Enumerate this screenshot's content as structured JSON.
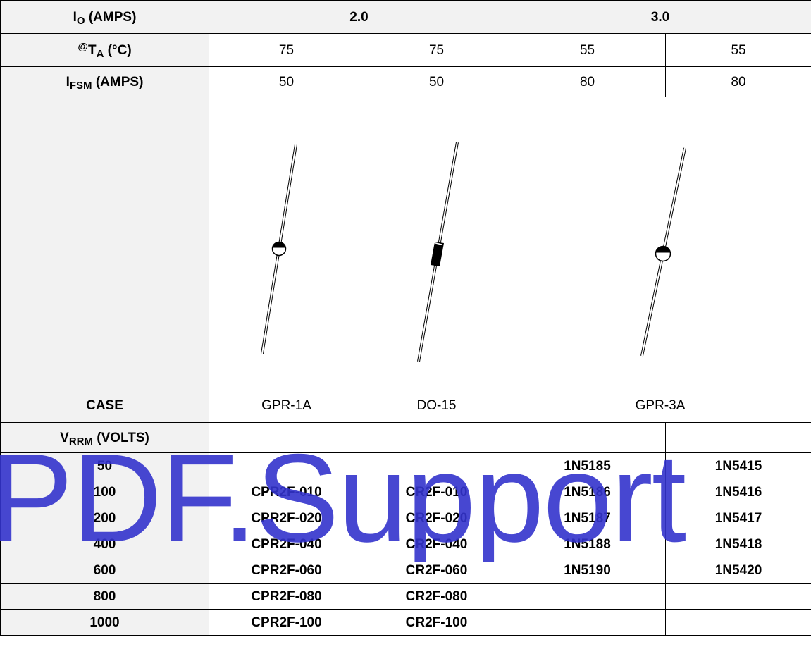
{
  "header": {
    "io_main": "I",
    "io_sub": "O",
    "io_unit": " (AMPS)",
    "ta_sup": "@",
    "ta_main": "T",
    "ta_sub": "A",
    "ta_unit": " (°C)",
    "ifsm_main": "I",
    "ifsm_sub": "FSM",
    "ifsm_unit": " (AMPS)",
    "case_label": "CASE",
    "vrrm_main": "V",
    "vrrm_sub": "RRM",
    "vrrm_unit": " (VOLTS)"
  },
  "columns": [
    {
      "io": "2.0",
      "ta": "75",
      "ifsm": "50",
      "case": "GPR-1A",
      "package": "glass-bead"
    },
    {
      "io": "2.0",
      "ta": "75",
      "ifsm": "50",
      "case": "DO-15",
      "package": "cylinder"
    },
    {
      "io": "3.0",
      "ta": "55",
      "ifsm": "80",
      "case": "GPR-3A",
      "package": "glass-bead"
    },
    {
      "io": "3.0",
      "ta": "55",
      "ifsm": "80",
      "case": "GPR-3A",
      "package": "glass-bead"
    }
  ],
  "current_groups": [
    "2.0",
    "3.0"
  ],
  "case_groups": [
    "GPR-1A",
    "DO-15",
    "GPR-3A"
  ],
  "ta_values": [
    "75",
    "75",
    "55",
    "55"
  ],
  "ifsm_values": [
    "50",
    "50",
    "80",
    "80"
  ],
  "voltage_rows": [
    {
      "volts": "50",
      "parts": [
        "",
        "",
        "1N5185",
        "1N5415"
      ]
    },
    {
      "volts": "100",
      "parts": [
        "CPR2F-010",
        "CR2F-010",
        "1N5186",
        "1N5416"
      ]
    },
    {
      "volts": "200",
      "parts": [
        "CPR2F-020",
        "CR2F-020",
        "1N5187",
        "1N5417"
      ]
    },
    {
      "volts": "400",
      "parts": [
        "CPR2F-040",
        "CR2F-040",
        "1N5188",
        "1N5418"
      ]
    },
    {
      "volts": "600",
      "parts": [
        "CPR2F-060",
        "CR2F-060",
        "1N5190",
        "1N5420"
      ]
    },
    {
      "volts": "800",
      "parts": [
        "CPR2F-080",
        "CR2F-080",
        "",
        ""
      ]
    },
    {
      "volts": "1000",
      "parts": [
        "CPR2F-100",
        "CR2F-100",
        "",
        ""
      ]
    }
  ],
  "watermark": "PDF.Support",
  "colors": {
    "header_bg": "#f2f2f2",
    "watermark": "#3333cc",
    "border": "#000000"
  }
}
